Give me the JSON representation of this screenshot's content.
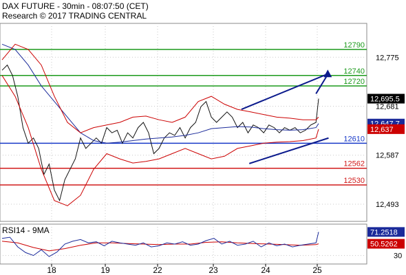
{
  "header": {
    "title": "DAX FUTURE - 30min - 08:07:50 (CET)",
    "subtitle": "Research © 2017 TRADING CENTRAL"
  },
  "colors": {
    "price": "#111111",
    "bollinger": "#cc0000",
    "moving_average": "#1a2a9a",
    "channel": "#0b1a8c",
    "resistance": "#1b9a1b",
    "pivot": "#1537c8",
    "support": "#d11a1a",
    "rsi_ma": "#cc0000",
    "rsi": "#1a2a9a",
    "grid": "#c8c8c8"
  },
  "chart_data": [
    {
      "type": "line",
      "panel": "price",
      "title": "DAX FUTURE - 30min - 08:07:50 (CET)",
      "x_tick_labels": [
        "18",
        "19",
        "22",
        "23",
        "24",
        "25"
      ],
      "y_ticks": [
        12493,
        12587,
        12681,
        12775
      ],
      "y_tick_labels": [
        "12,493",
        "12,587",
        "12,681",
        "12,775"
      ],
      "ylim": [
        12460,
        12840
      ],
      "grid": true,
      "last_price": {
        "value": 12695.5,
        "label": "12,695.5"
      },
      "indicator_labels": [
        {
          "value": 12647.7,
          "label": "12,647.7",
          "color": "#1a2a9a"
        },
        {
          "value": 12637,
          "label": "12,637",
          "color": "#cc0000"
        }
      ],
      "horizontal_levels": [
        {
          "value": 12790,
          "label": "12790",
          "kind": "resistance"
        },
        {
          "value": 12740,
          "label": "12740",
          "kind": "resistance"
        },
        {
          "value": 12720,
          "label": "12720",
          "kind": "resistance"
        },
        {
          "value": 12610,
          "label": "12610",
          "kind": "pivot"
        },
        {
          "value": 12562,
          "label": "12562",
          "kind": "support"
        },
        {
          "value": 12530,
          "label": "12530",
          "kind": "support"
        }
      ],
      "channel": {
        "upper": [
          [
            9.15,
            12675
          ],
          [
            12.45,
            12743
          ]
        ],
        "lower": [
          [
            9.45,
            12571
          ],
          [
            12.48,
            12620
          ]
        ]
      },
      "projection_arrow": [
        [
          12.0,
          12705
        ],
        [
          12.45,
          12742
        ]
      ],
      "series": [
        {
          "name": "Price",
          "x": [
            0,
            0.2,
            0.4,
            0.6,
            0.8,
            1,
            1.2,
            1.4,
            1.6,
            1.8,
            2,
            2.2,
            2.4,
            2.6,
            2.8,
            3,
            3.2,
            3.4,
            3.6,
            3.8,
            4,
            4.2,
            4.4,
            4.6,
            4.8,
            5,
            5.2,
            5.4,
            5.6,
            5.8,
            6,
            6.2,
            6.4,
            6.6,
            6.8,
            7,
            7.2,
            7.4,
            7.6,
            7.8,
            8,
            8.2,
            8.4,
            8.6,
            8.8,
            9,
            9.2,
            9.4,
            9.6,
            9.8,
            10,
            10.2,
            10.4,
            10.6,
            10.8,
            11,
            11.2,
            11.4,
            11.6,
            11.8,
            12,
            12.1
          ],
          "values": [
            12750,
            12760,
            12740,
            12700,
            12640,
            12610,
            12620,
            12600,
            12550,
            12570,
            12520,
            12500,
            12540,
            12560,
            12580,
            12620,
            12600,
            12610,
            12620,
            12610,
            12640,
            12630,
            12635,
            12610,
            12630,
            12620,
            12640,
            12650,
            12630,
            12590,
            12600,
            12620,
            12630,
            12625,
            12640,
            12620,
            12640,
            12650,
            12680,
            12690,
            12660,
            12650,
            12660,
            12670,
            12660,
            12640,
            12650,
            12630,
            12645,
            12640,
            12630,
            12645,
            12640,
            12630,
            12640,
            12635,
            12640,
            12630,
            12635,
            12645,
            12650,
            12695.5
          ]
        },
        {
          "name": "Moving average",
          "x": [
            0,
            0.5,
            1,
            1.5,
            2,
            2.5,
            3,
            3.5,
            4,
            4.5,
            5,
            5.5,
            6,
            6.5,
            7,
            7.5,
            8,
            8.5,
            9,
            9.5,
            10,
            10.5,
            11,
            11.5,
            12,
            12.1
          ],
          "values": [
            12800,
            12790,
            12760,
            12720,
            12690,
            12660,
            12630,
            12615,
            12610,
            12612,
            12615,
            12618,
            12620,
            12622,
            12625,
            12630,
            12638,
            12640,
            12642,
            12641,
            12638,
            12636,
            12635,
            12636,
            12640,
            12647.7
          ]
        },
        {
          "name": "Bollinger upper",
          "x": [
            0,
            0.5,
            1,
            1.5,
            2,
            2.5,
            3,
            3.5,
            4,
            4.5,
            5,
            5.5,
            6,
            6.5,
            7,
            7.5,
            8,
            8.5,
            9,
            9.5,
            10,
            10.5,
            11,
            11.5,
            12,
            12.1
          ],
          "values": [
            12770,
            12800,
            12790,
            12760,
            12700,
            12650,
            12630,
            12640,
            12645,
            12650,
            12660,
            12662,
            12655,
            12650,
            12660,
            12690,
            12700,
            12685,
            12675,
            12670,
            12665,
            12660,
            12658,
            12655,
            12655,
            12660
          ]
        },
        {
          "name": "Bollinger lower",
          "x": [
            0,
            0.5,
            1,
            1.5,
            2,
            2.5,
            3,
            3.5,
            4,
            4.5,
            5,
            5.5,
            6,
            6.5,
            7,
            7.5,
            8,
            8.5,
            9,
            9.5,
            10,
            10.5,
            11,
            11.5,
            12,
            12.1
          ],
          "values": [
            12740,
            12700,
            12640,
            12560,
            12500,
            12490,
            12510,
            12560,
            12590,
            12580,
            12572,
            12575,
            12580,
            12590,
            12600,
            12590,
            12580,
            12585,
            12600,
            12605,
            12610,
            12612,
            12613,
            12615,
            12620,
            12637
          ]
        }
      ]
    },
    {
      "type": "line",
      "panel": "rsi",
      "title": "RSI14 - 9MA",
      "y_ticks": [
        30
      ],
      "y_tick_labels": [
        "30"
      ],
      "ylim": [
        15,
        85
      ],
      "grid": true,
      "value_labels": [
        {
          "value": 71.2518,
          "label": "71.2518",
          "color": "#1a2a9a"
        },
        {
          "value": 50.5262,
          "label": "50.5262",
          "color": "#cc0000"
        }
      ],
      "series": [
        {
          "name": "RSI14",
          "x": [
            0,
            0.3,
            0.6,
            0.9,
            1.2,
            1.5,
            1.8,
            2.1,
            2.4,
            2.7,
            3,
            3.3,
            3.6,
            3.9,
            4.2,
            4.5,
            4.8,
            5.1,
            5.4,
            5.7,
            6,
            6.3,
            6.6,
            6.9,
            7.2,
            7.5,
            7.8,
            8.1,
            8.4,
            8.7,
            9,
            9.3,
            9.6,
            9.9,
            10.2,
            10.5,
            10.8,
            11.1,
            11.4,
            11.7,
            12,
            12.1
          ],
          "values": [
            60,
            62,
            45,
            35,
            30,
            40,
            28,
            36,
            50,
            55,
            58,
            52,
            54,
            47,
            55,
            52,
            50,
            48,
            52,
            45,
            47,
            52,
            50,
            54,
            48,
            50,
            56,
            60,
            50,
            55,
            48,
            50,
            55,
            45,
            52,
            47,
            50,
            45,
            48,
            50,
            52,
            71.2518
          ]
        },
        {
          "name": "9MA",
          "x": [
            0,
            0.6,
            1.2,
            1.8,
            2.4,
            3,
            3.6,
            4.2,
            4.8,
            5.4,
            6,
            6.6,
            7.2,
            7.8,
            8.4,
            9,
            9.6,
            10.2,
            10.8,
            11.4,
            12,
            12.1
          ],
          "values": [
            55,
            52,
            44,
            38,
            42,
            48,
            52,
            52,
            51,
            50,
            49,
            50,
            50,
            53,
            54,
            52,
            51,
            50,
            49,
            48,
            49,
            50.5262
          ]
        }
      ]
    }
  ]
}
